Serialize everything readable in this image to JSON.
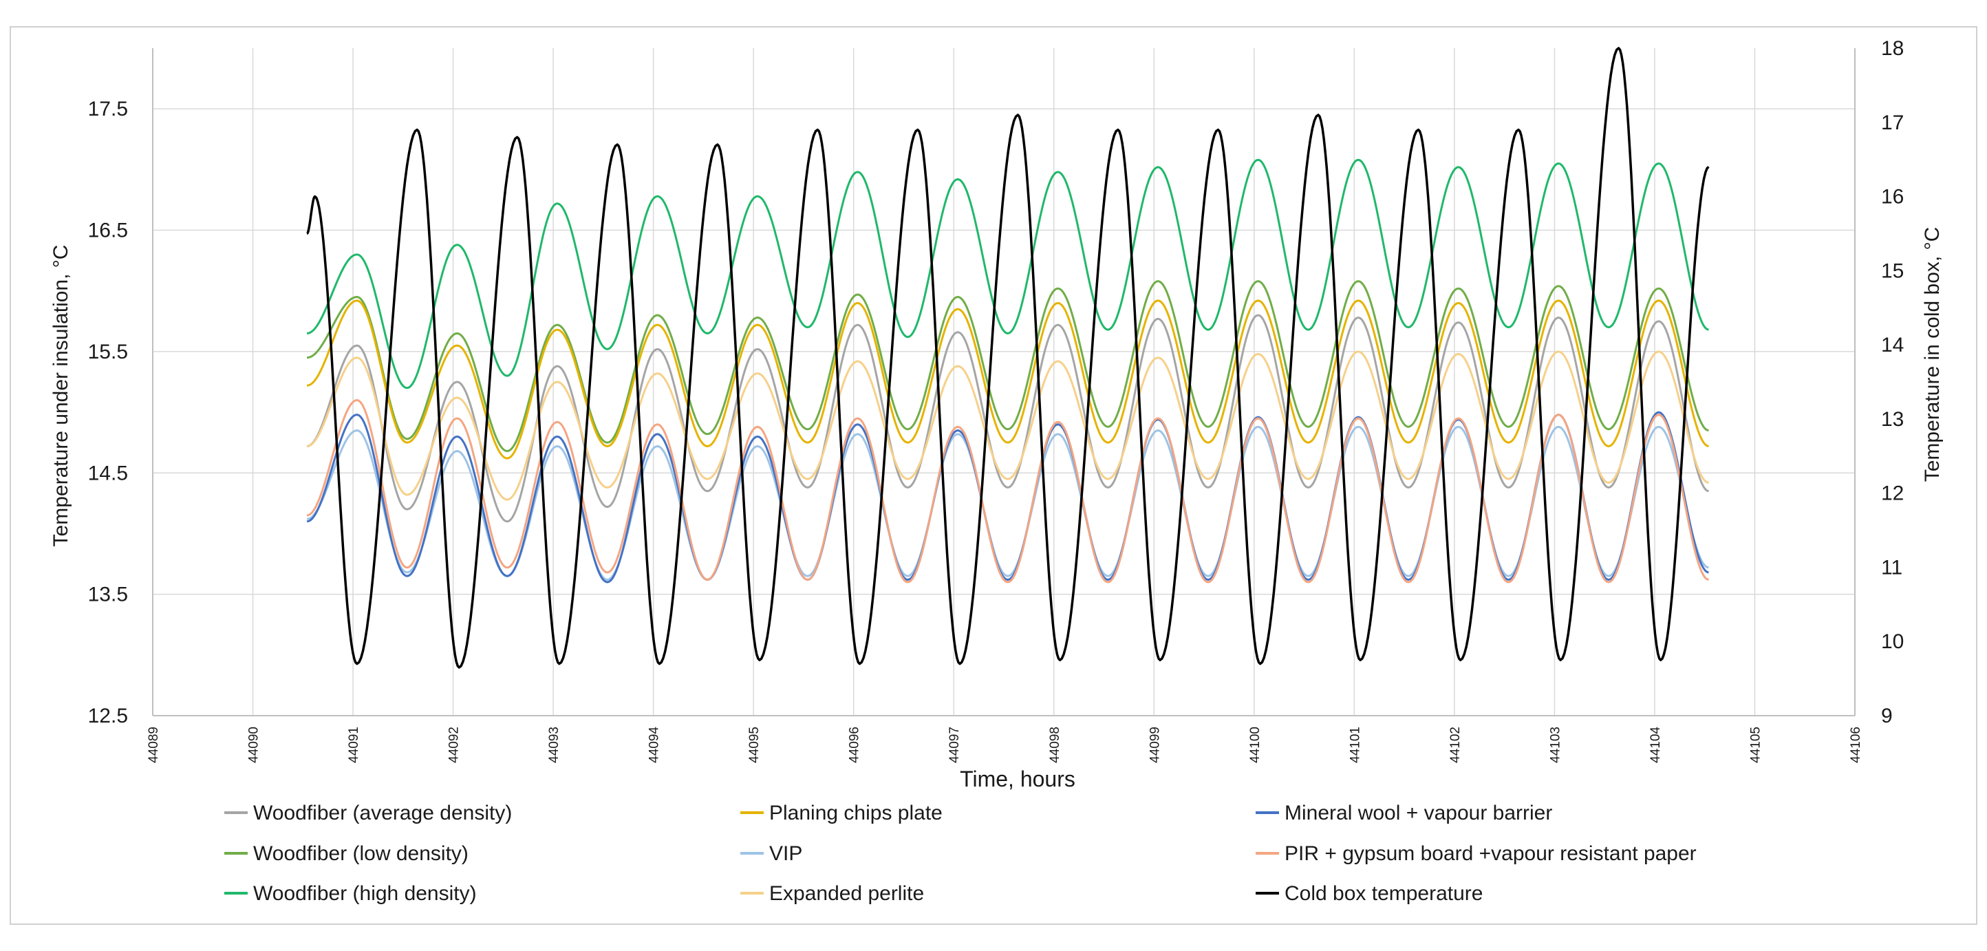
{
  "chart_data": {
    "type": "line",
    "title": "",
    "xlabel": "Time, hours",
    "ylabel": "Temperature under insulation, °C",
    "y2label": "Temperature in cold box, °C",
    "xlim": [
      44089,
      44106
    ],
    "ylim": [
      12.5,
      18.0
    ],
    "y2lim": [
      9,
      18
    ],
    "x_ticks": [
      44089,
      44090,
      44091,
      44092,
      44093,
      44094,
      44095,
      44096,
      44097,
      44098,
      44099,
      44100,
      44101,
      44102,
      44103,
      44104,
      44105,
      44106
    ],
    "y_ticks": [
      12.5,
      13.5,
      14.5,
      15.5,
      16.5,
      17.5
    ],
    "y_tick_labels": [
      "12.5",
      "13.5",
      "14.5",
      "15.5",
      "16.5",
      "17.5"
    ],
    "y2_ticks": [
      9,
      10,
      11,
      12,
      13,
      14,
      15,
      16,
      17,
      18
    ],
    "grid": true,
    "legend_position": "bottom",
    "x_start": 44090.54,
    "x_end": 44104.54,
    "cycle_hours": 1,
    "series": [
      {
        "name": "Woodfiber (average density)",
        "color": "#a5a5a5",
        "axis": "left",
        "peaks": [
          15.55,
          15.25,
          15.38,
          15.52,
          15.52,
          15.72,
          15.66,
          15.72,
          15.77,
          15.8,
          15.78,
          15.74,
          15.78,
          15.75
        ],
        "troughs": [
          14.72,
          14.2,
          14.1,
          14.22,
          14.35,
          14.38,
          14.38,
          14.38,
          14.38,
          14.38,
          14.38,
          14.38,
          14.38,
          14.38,
          14.35
        ]
      },
      {
        "name": "Woodfiber (low density)",
        "color": "#70ad47",
        "axis": "left",
        "peaks": [
          15.95,
          15.65,
          15.72,
          15.8,
          15.78,
          15.97,
          15.95,
          16.02,
          16.08,
          16.08,
          16.08,
          16.02,
          16.04,
          16.02
        ],
        "troughs": [
          15.45,
          14.78,
          14.68,
          14.75,
          14.82,
          14.86,
          14.86,
          14.86,
          14.88,
          14.88,
          14.88,
          14.88,
          14.88,
          14.86,
          14.85
        ]
      },
      {
        "name": "Woodfiber (high density)",
        "color": "#1fb86a",
        "axis": "left",
        "peaks": [
          16.3,
          16.38,
          16.72,
          16.78,
          16.78,
          16.98,
          16.92,
          16.98,
          17.02,
          17.08,
          17.08,
          17.02,
          17.05,
          17.05
        ],
        "troughs": [
          15.65,
          15.2,
          15.3,
          15.52,
          15.65,
          15.7,
          15.62,
          15.65,
          15.68,
          15.68,
          15.68,
          15.7,
          15.7,
          15.7,
          15.68
        ]
      },
      {
        "name": "Planing chips plate",
        "color": "#e5b300",
        "axis": "left",
        "peaks": [
          15.92,
          15.55,
          15.68,
          15.72,
          15.72,
          15.9,
          15.85,
          15.9,
          15.92,
          15.92,
          15.92,
          15.9,
          15.92,
          15.92
        ],
        "troughs": [
          15.22,
          14.75,
          14.62,
          14.72,
          14.72,
          14.75,
          14.75,
          14.75,
          14.75,
          14.75,
          14.75,
          14.75,
          14.75,
          14.72,
          14.72
        ]
      },
      {
        "name": "VIP",
        "color": "#9dc3e6",
        "axis": "left",
        "peaks": [
          14.85,
          14.68,
          14.72,
          14.72,
          14.72,
          14.82,
          14.82,
          14.82,
          14.85,
          14.88,
          14.88,
          14.88,
          14.88,
          14.88
        ],
        "troughs": [
          14.12,
          13.68,
          13.65,
          13.62,
          13.62,
          13.65,
          13.65,
          13.65,
          13.65,
          13.65,
          13.65,
          13.65,
          13.65,
          13.65,
          13.72
        ]
      },
      {
        "name": "Expanded perlite",
        "color": "#f6d08a",
        "axis": "left",
        "peaks": [
          15.45,
          15.12,
          15.25,
          15.32,
          15.32,
          15.42,
          15.38,
          15.42,
          15.45,
          15.48,
          15.5,
          15.48,
          15.5,
          15.5
        ],
        "troughs": [
          14.72,
          14.32,
          14.28,
          14.38,
          14.45,
          14.45,
          14.45,
          14.45,
          14.45,
          14.45,
          14.45,
          14.45,
          14.45,
          14.42,
          14.42
        ]
      },
      {
        "name": "Mineral wool + vapour barrier",
        "color": "#4472c4",
        "axis": "left",
        "peaks": [
          14.98,
          14.8,
          14.8,
          14.82,
          14.8,
          14.9,
          14.85,
          14.9,
          14.94,
          14.96,
          14.96,
          14.94,
          14.98,
          15.0
        ],
        "troughs": [
          14.1,
          13.65,
          13.65,
          13.6,
          13.62,
          13.62,
          13.62,
          13.62,
          13.62,
          13.62,
          13.62,
          13.62,
          13.62,
          13.62,
          13.68
        ]
      },
      {
        "name": "PIR + gypsum board +vapour resistant paper",
        "color": "#f4a582",
        "axis": "left",
        "peaks": [
          15.1,
          14.95,
          14.92,
          14.9,
          14.88,
          14.95,
          14.88,
          14.92,
          14.95,
          14.95,
          14.95,
          14.95,
          14.98,
          14.98
        ],
        "troughs": [
          14.15,
          13.72,
          13.72,
          13.68,
          13.62,
          13.62,
          13.6,
          13.6,
          13.6,
          13.6,
          13.6,
          13.6,
          13.6,
          13.6,
          13.62
        ]
      },
      {
        "name": "Cold box temperature",
        "color": "#000000",
        "axis": "right",
        "peaks": [
          16.0,
          16.9,
          16.8,
          16.7,
          16.7,
          16.9,
          16.9,
          17.1,
          16.9,
          16.9,
          17.1,
          16.9,
          16.9,
          18.0
        ],
        "troughs": [
          15.5,
          9.7,
          9.65,
          9.7,
          9.7,
          9.75,
          9.7,
          9.7,
          9.75,
          9.75,
          9.7,
          9.75,
          9.75,
          9.75,
          9.75
        ],
        "end_value": 16.4
      }
    ]
  }
}
